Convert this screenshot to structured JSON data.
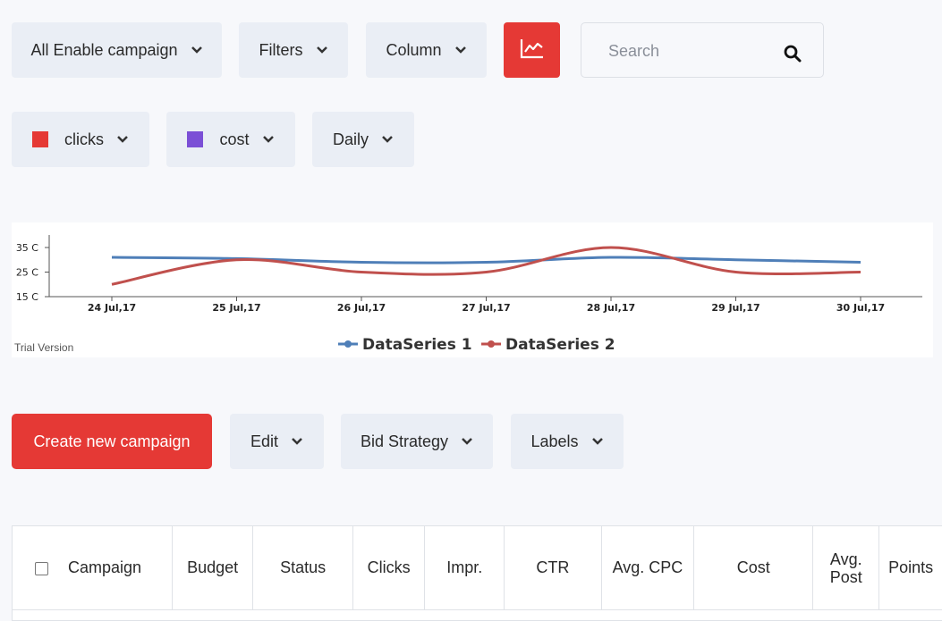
{
  "toolbar": {
    "campaign_select": "All Enable campaign",
    "filters": "Filters",
    "column": "Column",
    "search_placeholder": "Search"
  },
  "metrics": {
    "metric1": {
      "label": "clicks",
      "color": "#e53935"
    },
    "metric2": {
      "label": "cost",
      "color": "#7b4fd6"
    },
    "period": "Daily"
  },
  "chart_data": {
    "type": "line",
    "categories": [
      "24 Jul,17",
      "25 Jul,17",
      "26 Jul,17",
      "27 Jul,17",
      "28 Jul,17",
      "29 Jul,17",
      "30 Jul,17"
    ],
    "y_ticks": [
      "35 C",
      "25 C",
      "15 C"
    ],
    "ylim": [
      15,
      35
    ],
    "series": [
      {
        "name": "DataSeries 1",
        "color": "#4f7fb8",
        "values": [
          31,
          30.5,
          29,
          29,
          31,
          30,
          29
        ]
      },
      {
        "name": "DataSeries 2",
        "color": "#c0504d",
        "values": [
          20,
          30,
          25,
          25,
          35,
          25,
          25
        ]
      }
    ],
    "legend": "bottom-center",
    "watermark": "Trial Version"
  },
  "actions": {
    "create": "Create new campaign",
    "edit": "Edit",
    "bid_strategy": "Bid Strategy",
    "labels": "Labels"
  },
  "table": {
    "headers": [
      "Campaign",
      "Budget",
      "Status",
      "Clicks",
      "Impr.",
      "CTR",
      "Avg. CPC",
      "Cost",
      "Avg. Post",
      "Points"
    ]
  }
}
